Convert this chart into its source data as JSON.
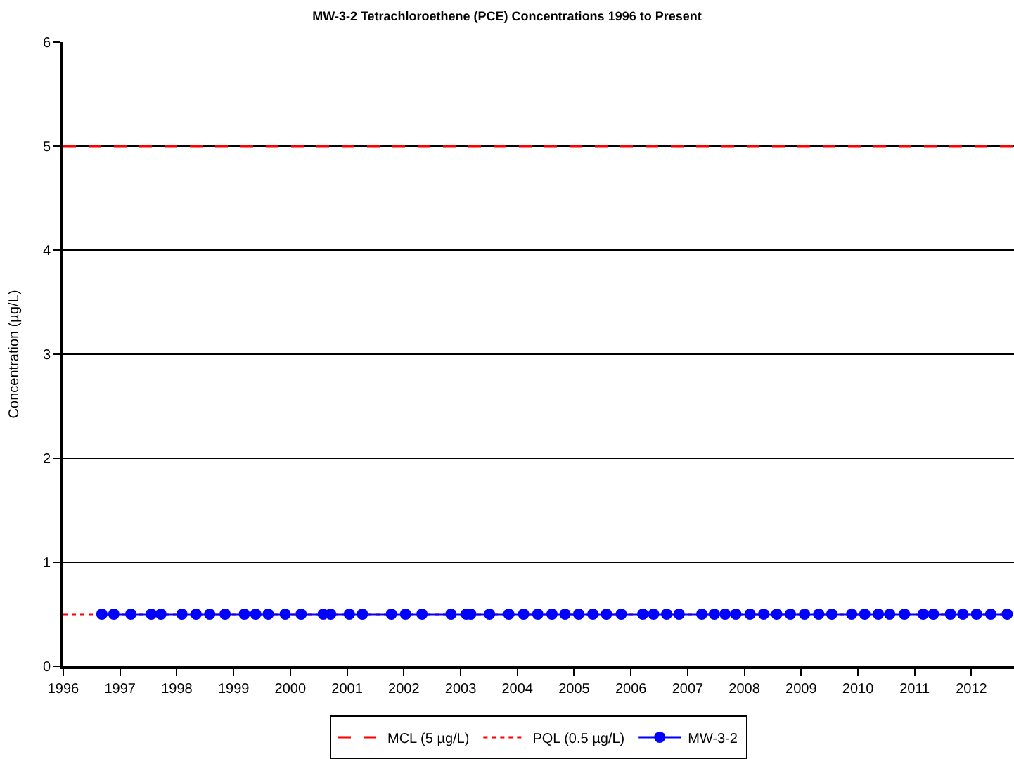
{
  "chart_data": {
    "type": "line",
    "title": "MW-3-2 Tetrachloroethene (PCE) Concentrations 1996 to Present",
    "ylabel": "Concentration (µg/L)",
    "x": [
      1996.68,
      1996.89,
      1997.19,
      1997.55,
      1997.72,
      1998.09,
      1998.34,
      1998.58,
      1998.85,
      1999.19,
      1999.39,
      1999.61,
      1999.91,
      2000.19,
      2000.58,
      2000.71,
      2001.04,
      2001.27,
      2001.78,
      2002.03,
      2002.32,
      2002.83,
      2003.1,
      2003.18,
      2003.51,
      2003.85,
      2004.11,
      2004.36,
      2004.61,
      2004.84,
      2005.08,
      2005.33,
      2005.57,
      2005.83,
      2006.21,
      2006.4,
      2006.63,
      2006.85,
      2007.25,
      2007.47,
      2007.66,
      2007.85,
      2008.1,
      2008.34,
      2008.57,
      2008.81,
      2009.06,
      2009.31,
      2009.54,
      2009.89,
      2010.12,
      2010.36,
      2010.56,
      2010.82,
      2011.15,
      2011.33,
      2011.63,
      2011.85,
      2012.09,
      2012.34,
      2012.63
    ],
    "series": [
      {
        "name": "MW-3-2",
        "color": "#0000ff",
        "values": [
          0.5,
          0.5,
          0.5,
          0.5,
          0.5,
          0.5,
          0.5,
          0.5,
          0.5,
          0.5,
          0.5,
          0.5,
          0.5,
          0.5,
          0.5,
          0.5,
          0.5,
          0.5,
          0.5,
          0.5,
          0.5,
          0.5,
          0.5,
          0.5,
          0.5,
          0.5,
          0.5,
          0.5,
          0.5,
          0.5,
          0.5,
          0.5,
          0.5,
          0.5,
          0.5,
          0.5,
          0.5,
          0.5,
          0.5,
          0.5,
          0.5,
          0.5,
          0.5,
          0.5,
          0.5,
          0.5,
          0.5,
          0.5,
          0.5,
          0.5,
          0.5,
          0.5,
          0.5,
          0.5,
          0.5,
          0.5,
          0.5,
          0.5,
          0.5,
          0.5,
          0.5
        ]
      }
    ],
    "marker": "circle",
    "line_style": "solid",
    "ref_lines": [
      {
        "axis": "y",
        "value": 5,
        "label": "MCL (5 µg/L)",
        "color": "#ff0000",
        "line_style": "dashed"
      },
      {
        "axis": "y",
        "value": 0.5,
        "label": "PQL (0.5 µg/L)",
        "color": "#ff0000",
        "line_style": "dotted"
      }
    ],
    "xlim": [
      1996,
      2012.75
    ],
    "xticks": [
      1996,
      1997,
      1998,
      1999,
      2000,
      2001,
      2002,
      2003,
      2004,
      2005,
      2006,
      2007,
      2008,
      2009,
      2010,
      2011,
      2012
    ],
    "ylim": [
      0,
      6
    ],
    "yticks": [
      0,
      1,
      2,
      3,
      4,
      5,
      6
    ],
    "grid": "y",
    "legend": "bottom"
  }
}
